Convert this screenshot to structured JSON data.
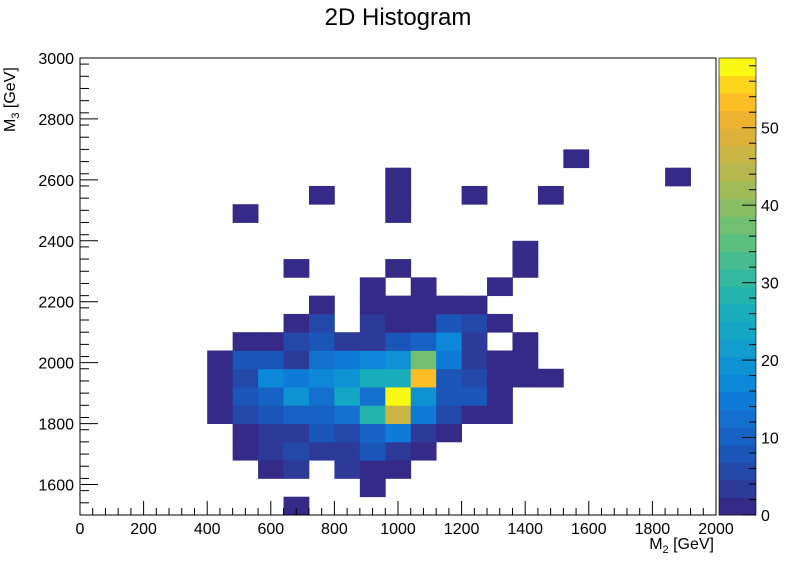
{
  "chart_data": {
    "type": "heatmap",
    "title": "2D Histogram",
    "xlabel": {
      "base": "M",
      "sub": "2",
      "unit": " [GeV]"
    },
    "ylabel": {
      "base": "M",
      "sub": "3",
      "unit": " [GeV]"
    },
    "xlim": [
      0,
      2000
    ],
    "ylim": [
      1500,
      3000
    ],
    "bin_width_x": 80,
    "bin_width_y": 60,
    "x_ticks": [
      "0",
      "200",
      "400",
      "600",
      "800",
      "1000",
      "1200",
      "1400",
      "1600",
      "1800",
      "2000"
    ],
    "y_ticks": [
      "1600",
      "1800",
      "2000",
      "2200",
      "2400",
      "2600",
      "2800",
      "3000"
    ],
    "z_range": [
      0,
      59
    ],
    "z_ticks": [
      "0",
      "10",
      "20",
      "30",
      "40",
      "50"
    ],
    "colormap": [
      "#352a87",
      "#2e3a97",
      "#2448a8",
      "#1a56b8",
      "#1763c5",
      "#1370cf",
      "#0f7bd8",
      "#0d87d8",
      "#0f92d3",
      "#129dcd",
      "#14a6c5",
      "#18adba",
      "#24b3ad",
      "#34b89f",
      "#47bc90",
      "#5bbf80",
      "#73bf72",
      "#8abe65",
      "#a0bc59",
      "#b5b84f",
      "#c9b444",
      "#dcb13a",
      "#eeb130",
      "#fcbe26",
      "#fcd51c",
      "#f9f914"
    ],
    "cells": [
      {
        "x": 640,
        "y": 1500,
        "v": 1
      },
      {
        "x": 880,
        "y": 1560,
        "v": 1
      },
      {
        "x": 560,
        "y": 1620,
        "v": 1
      },
      {
        "x": 640,
        "y": 1620,
        "v": 4
      },
      {
        "x": 800,
        "y": 1620,
        "v": 4
      },
      {
        "x": 880,
        "y": 1620,
        "v": 1
      },
      {
        "x": 960,
        "y": 1620,
        "v": 1
      },
      {
        "x": 480,
        "y": 1680,
        "v": 1
      },
      {
        "x": 560,
        "y": 1680,
        "v": 4
      },
      {
        "x": 640,
        "y": 1680,
        "v": 6
      },
      {
        "x": 720,
        "y": 1680,
        "v": 3
      },
      {
        "x": 800,
        "y": 1680,
        "v": 4
      },
      {
        "x": 880,
        "y": 1680,
        "v": 7
      },
      {
        "x": 960,
        "y": 1680,
        "v": 3
      },
      {
        "x": 1040,
        "y": 1680,
        "v": 1
      },
      {
        "x": 480,
        "y": 1740,
        "v": 1
      },
      {
        "x": 560,
        "y": 1740,
        "v": 4
      },
      {
        "x": 640,
        "y": 1740,
        "v": 4
      },
      {
        "x": 720,
        "y": 1740,
        "v": 8
      },
      {
        "x": 800,
        "y": 1740,
        "v": 5
      },
      {
        "x": 880,
        "y": 1740,
        "v": 10
      },
      {
        "x": 960,
        "y": 1740,
        "v": 14
      },
      {
        "x": 1040,
        "y": 1740,
        "v": 4
      },
      {
        "x": 1120,
        "y": 1740,
        "v": 1
      },
      {
        "x": 400,
        "y": 1800,
        "v": 1
      },
      {
        "x": 480,
        "y": 1800,
        "v": 5
      },
      {
        "x": 560,
        "y": 1800,
        "v": 8
      },
      {
        "x": 640,
        "y": 1800,
        "v": 11
      },
      {
        "x": 720,
        "y": 1800,
        "v": 10
      },
      {
        "x": 800,
        "y": 1800,
        "v": 12
      },
      {
        "x": 880,
        "y": 1800,
        "v": 29
      },
      {
        "x": 960,
        "y": 1800,
        "v": 47
      },
      {
        "x": 1040,
        "y": 1800,
        "v": 14
      },
      {
        "x": 1120,
        "y": 1800,
        "v": 5
      },
      {
        "x": 1200,
        "y": 1800,
        "v": 2
      },
      {
        "x": 1280,
        "y": 1800,
        "v": 2
      },
      {
        "x": 400,
        "y": 1860,
        "v": 1
      },
      {
        "x": 480,
        "y": 1860,
        "v": 8
      },
      {
        "x": 560,
        "y": 1860,
        "v": 10
      },
      {
        "x": 640,
        "y": 1860,
        "v": 20
      },
      {
        "x": 720,
        "y": 1860,
        "v": 12
      },
      {
        "x": 800,
        "y": 1860,
        "v": 23
      },
      {
        "x": 880,
        "y": 1860,
        "v": 13
      },
      {
        "x": 960,
        "y": 1860,
        "v": 59
      },
      {
        "x": 1040,
        "y": 1860,
        "v": 20
      },
      {
        "x": 1120,
        "y": 1860,
        "v": 7
      },
      {
        "x": 1200,
        "y": 1860,
        "v": 7
      },
      {
        "x": 1280,
        "y": 1860,
        "v": 1
      },
      {
        "x": 400,
        "y": 1920,
        "v": 1
      },
      {
        "x": 480,
        "y": 1920,
        "v": 6
      },
      {
        "x": 560,
        "y": 1920,
        "v": 17
      },
      {
        "x": 640,
        "y": 1920,
        "v": 14
      },
      {
        "x": 720,
        "y": 1920,
        "v": 16
      },
      {
        "x": 800,
        "y": 1920,
        "v": 19
      },
      {
        "x": 880,
        "y": 1920,
        "v": 27
      },
      {
        "x": 960,
        "y": 1920,
        "v": 27
      },
      {
        "x": 1040,
        "y": 1920,
        "v": 53
      },
      {
        "x": 1120,
        "y": 1920,
        "v": 9
      },
      {
        "x": 1200,
        "y": 1920,
        "v": 6
      },
      {
        "x": 1280,
        "y": 1920,
        "v": 2
      },
      {
        "x": 1360,
        "y": 1920,
        "v": 1
      },
      {
        "x": 1440,
        "y": 1920,
        "v": 1
      },
      {
        "x": 400,
        "y": 1980,
        "v": 1
      },
      {
        "x": 480,
        "y": 1980,
        "v": 7
      },
      {
        "x": 560,
        "y": 1980,
        "v": 7
      },
      {
        "x": 640,
        "y": 1980,
        "v": 4
      },
      {
        "x": 720,
        "y": 1980,
        "v": 12
      },
      {
        "x": 800,
        "y": 1980,
        "v": 14
      },
      {
        "x": 880,
        "y": 1980,
        "v": 16
      },
      {
        "x": 960,
        "y": 1980,
        "v": 20
      },
      {
        "x": 1040,
        "y": 1980,
        "v": 37
      },
      {
        "x": 1120,
        "y": 1980,
        "v": 14
      },
      {
        "x": 1200,
        "y": 1980,
        "v": 4
      },
      {
        "x": 1280,
        "y": 1980,
        "v": 1
      },
      {
        "x": 1360,
        "y": 1980,
        "v": 1
      },
      {
        "x": 480,
        "y": 2040,
        "v": 1
      },
      {
        "x": 560,
        "y": 2040,
        "v": 1
      },
      {
        "x": 640,
        "y": 2040,
        "v": 5
      },
      {
        "x": 720,
        "y": 2040,
        "v": 9
      },
      {
        "x": 800,
        "y": 2040,
        "v": 4
      },
      {
        "x": 880,
        "y": 2040,
        "v": 4
      },
      {
        "x": 960,
        "y": 2040,
        "v": 9
      },
      {
        "x": 1040,
        "y": 2040,
        "v": 11
      },
      {
        "x": 1120,
        "y": 2040,
        "v": 18
      },
      {
        "x": 1200,
        "y": 2040,
        "v": 4
      },
      {
        "x": 1360,
        "y": 2040,
        "v": 1
      },
      {
        "x": 640,
        "y": 2100,
        "v": 1
      },
      {
        "x": 720,
        "y": 2100,
        "v": 5
      },
      {
        "x": 880,
        "y": 2100,
        "v": 4
      },
      {
        "x": 960,
        "y": 2100,
        "v": 1
      },
      {
        "x": 1040,
        "y": 2100,
        "v": 1
      },
      {
        "x": 1120,
        "y": 2100,
        "v": 9
      },
      {
        "x": 1200,
        "y": 2100,
        "v": 6
      },
      {
        "x": 1280,
        "y": 2100,
        "v": 1
      },
      {
        "x": 720,
        "y": 2160,
        "v": 1
      },
      {
        "x": 880,
        "y": 2160,
        "v": 1
      },
      {
        "x": 960,
        "y": 2160,
        "v": 1
      },
      {
        "x": 1040,
        "y": 2160,
        "v": 1
      },
      {
        "x": 1120,
        "y": 2160,
        "v": 1
      },
      {
        "x": 1200,
        "y": 2160,
        "v": 1
      },
      {
        "x": 880,
        "y": 2220,
        "v": 1
      },
      {
        "x": 1040,
        "y": 2220,
        "v": 1
      },
      {
        "x": 1280,
        "y": 2220,
        "v": 1
      },
      {
        "x": 640,
        "y": 2280,
        "v": 1
      },
      {
        "x": 960,
        "y": 2280,
        "v": 1
      },
      {
        "x": 1360,
        "y": 2280,
        "v": 1
      },
      {
        "x": 1360,
        "y": 2340,
        "v": 1
      },
      {
        "x": 480,
        "y": 2460,
        "v": 1
      },
      {
        "x": 960,
        "y": 2460,
        "v": 1
      },
      {
        "x": 720,
        "y": 2520,
        "v": 1
      },
      {
        "x": 960,
        "y": 2520,
        "v": 1
      },
      {
        "x": 1200,
        "y": 2520,
        "v": 1
      },
      {
        "x": 1440,
        "y": 2520,
        "v": 1
      },
      {
        "x": 960,
        "y": 2580,
        "v": 1
      },
      {
        "x": 1840,
        "y": 2580,
        "v": 1
      },
      {
        "x": 1520,
        "y": 2640,
        "v": 1
      }
    ]
  }
}
